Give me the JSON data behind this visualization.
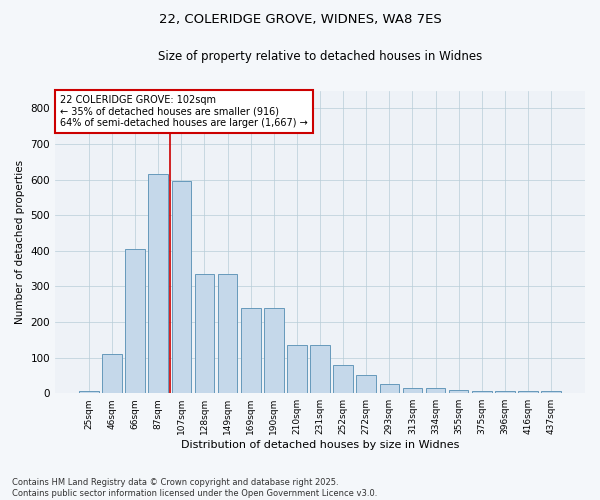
{
  "title1": "22, COLERIDGE GROVE, WIDNES, WA8 7ES",
  "title2": "Size of property relative to detached houses in Widnes",
  "xlabel": "Distribution of detached houses by size in Widnes",
  "ylabel": "Number of detached properties",
  "bar_labels": [
    "25sqm",
    "46sqm",
    "66sqm",
    "87sqm",
    "107sqm",
    "128sqm",
    "149sqm",
    "169sqm",
    "190sqm",
    "210sqm",
    "231sqm",
    "252sqm",
    "272sqm",
    "293sqm",
    "313sqm",
    "334sqm",
    "355sqm",
    "375sqm",
    "396sqm",
    "416sqm",
    "437sqm"
  ],
  "bar_values": [
    5,
    110,
    405,
    615,
    595,
    335,
    335,
    240,
    240,
    135,
    135,
    80,
    50,
    25,
    15,
    15,
    10,
    5,
    5,
    5,
    5
  ],
  "bar_color": "#c5d8ea",
  "bar_edge_color": "#6699bb",
  "vline_x": 3.5,
  "vline_color": "#cc0000",
  "annotation_line1": "22 COLERIDGE GROVE: 102sqm",
  "annotation_line2": "← 35% of detached houses are smaller (916)",
  "annotation_line3": "64% of semi-detached houses are larger (1,667) →",
  "annotation_box_color": "#ffffff",
  "annotation_box_edge": "#cc0000",
  "ylim": [
    0,
    850
  ],
  "yticks": [
    0,
    100,
    200,
    300,
    400,
    500,
    600,
    700,
    800
  ],
  "footer1": "Contains HM Land Registry data © Crown copyright and database right 2025.",
  "footer2": "Contains public sector information licensed under the Open Government Licence v3.0.",
  "bg_color": "#f4f7fa",
  "plot_bg_color": "#eef2f7",
  "grid_color": "#b8cdd8"
}
